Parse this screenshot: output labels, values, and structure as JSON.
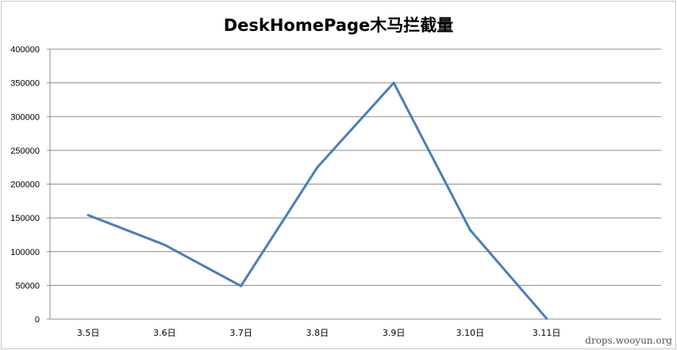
{
  "chart_data": {
    "type": "line",
    "title": "DeskHomePage木马拦截量",
    "xlabel": "",
    "ylabel": "",
    "categories": [
      "3.5日",
      "3.6日",
      "3.7日",
      "3.8日",
      "3.9日",
      "3.10日",
      "3.11日"
    ],
    "series": [
      {
        "values": [
          154000,
          110000,
          49000,
          225000,
          350000,
          132000,
          1000
        ],
        "color": "#4a7ebb"
      }
    ],
    "y_ticks": [
      "0",
      "50000",
      "100000",
      "150000",
      "200000",
      "250000",
      "300000",
      "350000",
      "400000"
    ],
    "ylim": [
      0,
      400000
    ],
    "grid": true,
    "legend": "none"
  },
  "watermark": "drops.wooyun.org"
}
